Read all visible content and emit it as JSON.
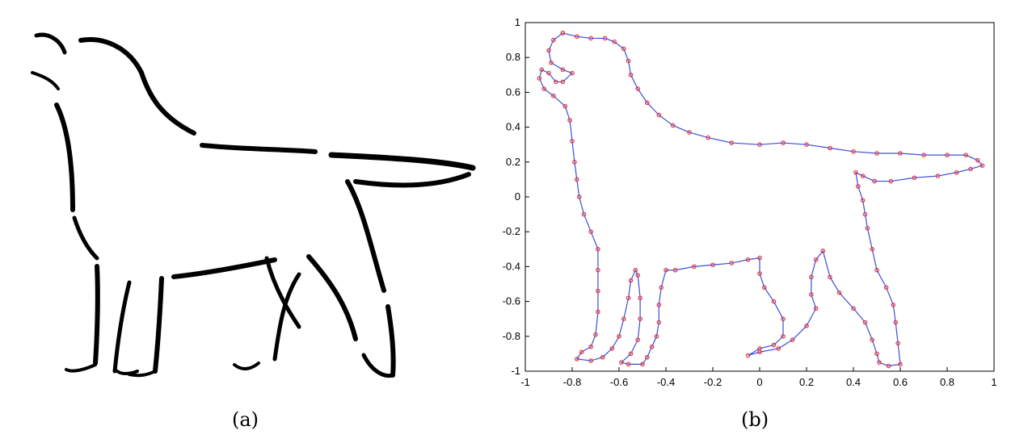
{
  "figure": {
    "panel_a": {
      "caption": "(a)"
    },
    "panel_b": {
      "caption": "(b)"
    }
  },
  "chart_data": {
    "type": "line",
    "title": "",
    "xlabel": "",
    "ylabel": "",
    "xlim": [
      -1,
      1
    ],
    "ylim": [
      -1,
      1
    ],
    "xticks": [
      "-1",
      "-0.8",
      "-0.6",
      "-0.4",
      "-0.2",
      "0",
      "0.2",
      "0.4",
      "0.6",
      "0.8",
      "1"
    ],
    "yticks": [
      "-1",
      "-0.8",
      "-0.6",
      "-0.4",
      "-0.2",
      "0",
      "0.2",
      "0.4",
      "0.6",
      "0.8",
      "1"
    ],
    "grid": false,
    "colors": {
      "line": "#3b4fd8",
      "markers": "#e8343b"
    },
    "series": [
      {
        "points": [
          [
            -0.84,
            0.94
          ],
          [
            -0.78,
            0.92
          ],
          [
            -0.72,
            0.91
          ],
          [
            -0.66,
            0.91
          ],
          [
            -0.62,
            0.89
          ],
          [
            -0.58,
            0.85
          ],
          [
            -0.56,
            0.78
          ],
          [
            -0.55,
            0.7
          ],
          [
            -0.52,
            0.62
          ],
          [
            -0.48,
            0.54
          ],
          [
            -0.43,
            0.47
          ],
          [
            -0.37,
            0.41
          ],
          [
            -0.3,
            0.37
          ],
          [
            -0.22,
            0.34
          ],
          [
            -0.12,
            0.31
          ],
          [
            0.0,
            0.3
          ],
          [
            0.1,
            0.31
          ],
          [
            0.2,
            0.3
          ],
          [
            0.3,
            0.28
          ],
          [
            0.4,
            0.26
          ],
          [
            0.5,
            0.25
          ],
          [
            0.6,
            0.25
          ],
          [
            0.7,
            0.24
          ],
          [
            0.8,
            0.24
          ],
          [
            0.88,
            0.24
          ],
          [
            0.93,
            0.21
          ],
          [
            0.95,
            0.18
          ],
          [
            0.9,
            0.16
          ],
          [
            0.84,
            0.14
          ],
          [
            0.76,
            0.12
          ],
          [
            0.66,
            0.11
          ],
          [
            0.56,
            0.09
          ],
          [
            0.49,
            0.09
          ],
          [
            0.44,
            0.12
          ],
          [
            0.41,
            0.14
          ],
          [
            0.42,
            0.06
          ],
          [
            0.44,
            -0.02
          ],
          [
            0.45,
            -0.1
          ],
          [
            0.46,
            -0.18
          ],
          [
            0.48,
            -0.3
          ],
          [
            0.5,
            -0.42
          ],
          [
            0.54,
            -0.52
          ],
          [
            0.57,
            -0.62
          ],
          [
            0.58,
            -0.72
          ],
          [
            0.59,
            -0.84
          ],
          [
            0.6,
            -0.96
          ],
          [
            0.55,
            -0.97
          ],
          [
            0.51,
            -0.95
          ],
          [
            0.5,
            -0.9
          ],
          [
            0.48,
            -0.82
          ],
          [
            0.45,
            -0.72
          ],
          [
            0.4,
            -0.64
          ],
          [
            0.34,
            -0.55
          ],
          [
            0.3,
            -0.46
          ],
          [
            0.27,
            -0.31
          ],
          [
            0.24,
            -0.36
          ],
          [
            0.22,
            -0.46
          ],
          [
            0.22,
            -0.56
          ],
          [
            0.24,
            -0.64
          ],
          [
            0.2,
            -0.74
          ],
          [
            0.14,
            -0.82
          ],
          [
            0.08,
            -0.87
          ],
          [
            0.0,
            -0.89
          ],
          [
            -0.05,
            -0.91
          ],
          [
            0.0,
            -0.87
          ],
          [
            0.06,
            -0.85
          ],
          [
            0.1,
            -0.8
          ],
          [
            0.1,
            -0.7
          ],
          [
            0.06,
            -0.6
          ],
          [
            0.02,
            -0.52
          ],
          [
            0.0,
            -0.44
          ],
          [
            0.0,
            -0.35
          ],
          [
            -0.05,
            -0.36
          ],
          [
            -0.12,
            -0.38
          ],
          [
            -0.2,
            -0.39
          ],
          [
            -0.28,
            -0.4
          ],
          [
            -0.36,
            -0.42
          ],
          [
            -0.4,
            -0.42
          ],
          [
            -0.42,
            -0.52
          ],
          [
            -0.43,
            -0.62
          ],
          [
            -0.43,
            -0.72
          ],
          [
            -0.44,
            -0.8
          ],
          [
            -0.46,
            -0.86
          ],
          [
            -0.48,
            -0.92
          ],
          [
            -0.5,
            -0.96
          ],
          [
            -0.56,
            -0.96
          ],
          [
            -0.59,
            -0.95
          ],
          [
            -0.55,
            -0.9
          ],
          [
            -0.52,
            -0.82
          ],
          [
            -0.51,
            -0.7
          ],
          [
            -0.51,
            -0.58
          ],
          [
            -0.52,
            -0.45
          ],
          [
            -0.53,
            -0.42
          ],
          [
            -0.55,
            -0.48
          ],
          [
            -0.56,
            -0.58
          ],
          [
            -0.58,
            -0.7
          ],
          [
            -0.6,
            -0.8
          ],
          [
            -0.63,
            -0.87
          ],
          [
            -0.67,
            -0.92
          ],
          [
            -0.72,
            -0.94
          ],
          [
            -0.78,
            -0.93
          ],
          [
            -0.76,
            -0.89
          ],
          [
            -0.72,
            -0.86
          ],
          [
            -0.7,
            -0.79
          ],
          [
            -0.69,
            -0.66
          ],
          [
            -0.69,
            -0.54
          ],
          [
            -0.69,
            -0.42
          ],
          [
            -0.69,
            -0.3
          ],
          [
            -0.72,
            -0.2
          ],
          [
            -0.75,
            -0.1
          ],
          [
            -0.77,
            0.0
          ],
          [
            -0.78,
            0.1
          ],
          [
            -0.79,
            0.2
          ],
          [
            -0.8,
            0.32
          ],
          [
            -0.81,
            0.44
          ],
          [
            -0.83,
            0.52
          ],
          [
            -0.88,
            0.58
          ],
          [
            -0.92,
            0.62
          ],
          [
            -0.94,
            0.68
          ],
          [
            -0.93,
            0.73
          ],
          [
            -0.9,
            0.71
          ],
          [
            -0.87,
            0.66
          ],
          [
            -0.84,
            0.66
          ],
          [
            -0.8,
            0.71
          ],
          [
            -0.84,
            0.73
          ],
          [
            -0.89,
            0.77
          ],
          [
            -0.9,
            0.84
          ],
          [
            -0.88,
            0.9
          ],
          [
            -0.84,
            0.94
          ]
        ]
      }
    ]
  }
}
